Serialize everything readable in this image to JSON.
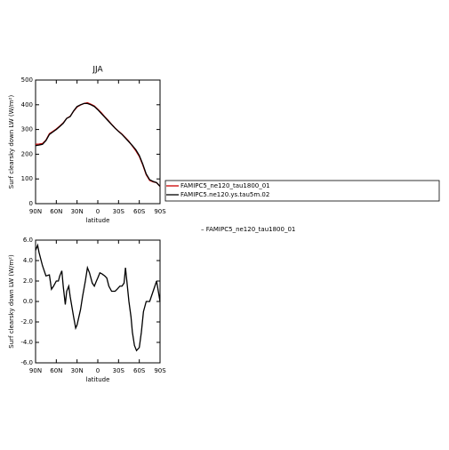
{
  "chart_data": [
    {
      "type": "line",
      "title": "JJA",
      "y_label": "Surf clearsky down LW (W/m²)",
      "x_label": "latitude",
      "xlim": [
        90,
        -90
      ],
      "ylim": [
        0,
        500
      ],
      "xticks": [
        {
          "value": 90,
          "label": "90N"
        },
        {
          "value": 60,
          "label": "60N"
        },
        {
          "value": 30,
          "label": "30N"
        },
        0,
        {
          "value": -30,
          "label": "30S"
        },
        {
          "value": -60,
          "label": "60S"
        },
        {
          "value": -90,
          "label": "90S"
        }
      ],
      "yticks": [
        0,
        100,
        200,
        300,
        400,
        500
      ],
      "x": [
        90,
        85,
        80,
        75,
        70,
        65,
        60,
        55,
        50,
        45,
        40,
        35,
        30,
        25,
        20,
        15,
        10,
        5,
        0,
        -5,
        -10,
        -15,
        -20,
        -25,
        -30,
        -35,
        -40,
        -45,
        -50,
        -55,
        -60,
        -65,
        -70,
        -75,
        -80,
        -85,
        -90
      ],
      "series": [
        {
          "name": "FAMIPC5_ne120_tau1800_01",
          "color": "#cc0000",
          "values": [
            240,
            241,
            243,
            257,
            283,
            292,
            302,
            314,
            327,
            345,
            353,
            374,
            391,
            399,
            405,
            408,
            402,
            395,
            382,
            368,
            352,
            337,
            321,
            306,
            293,
            281,
            267,
            252,
            233,
            214,
            191,
            157,
            117,
            94,
            88,
            85,
            70
          ]
        },
        {
          "name": "FAMIPC5.ne120.ys.tau5m.02",
          "color": "#000000",
          "values": [
            235,
            237,
            240,
            255,
            280,
            290,
            300,
            312,
            325,
            345,
            352,
            375,
            393,
            400,
            405,
            405,
            400,
            393,
            380,
            365,
            350,
            335,
            320,
            305,
            292,
            280,
            265,
            250,
            235,
            218,
            195,
            160,
            120,
            97,
            90,
            85,
            70
          ]
        }
      ]
    },
    {
      "type": "line",
      "y_label": "Surf clearsky down LW (W/m²)",
      "x_label": "latitude",
      "annotation": "– FAMIPC5_ne120_tau1800_01",
      "xlim": [
        90,
        -90
      ],
      "ylim": [
        -6,
        6
      ],
      "xticks": [
        {
          "value": 90,
          "label": "90N"
        },
        {
          "value": 60,
          "label": "60N"
        },
        {
          "value": 30,
          "label": "30N"
        },
        0,
        {
          "value": -30,
          "label": "30S"
        },
        {
          "value": -60,
          "label": "60S"
        },
        {
          "value": -90,
          "label": "90S"
        }
      ],
      "yticks": [
        {
          "value": -6,
          "label": "-6.0"
        },
        {
          "value": -4,
          "label": "-4.0"
        },
        {
          "value": -2,
          "label": "-2.0"
        },
        {
          "value": 0,
          "label": "0.0"
        },
        {
          "value": 2,
          "label": "2.0"
        },
        {
          "value": 4,
          "label": "4.0"
        },
        {
          "value": 6,
          "label": "6.0"
        }
      ],
      "x": [
        90,
        87,
        85,
        80,
        75,
        70,
        67,
        64,
        60,
        57,
        55,
        52,
        50,
        47,
        45,
        42,
        40,
        35,
        32,
        30,
        25,
        22,
        18,
        15,
        12,
        8,
        5,
        2,
        0,
        -3,
        -6,
        -10,
        -13,
        -16,
        -20,
        -25,
        -28,
        -32,
        -35,
        -38,
        -40,
        -42,
        -45,
        -48,
        -50,
        -53,
        -56,
        -60,
        -63,
        -66,
        -70,
        -75,
        -80,
        -85,
        -90
      ],
      "series": [
        {
          "color": "#000000",
          "values": [
            5.0,
            5.5,
            4.8,
            3.5,
            2.5,
            2.6,
            1.2,
            1.5,
            2.0,
            2.0,
            2.5,
            3.0,
            1.5,
            -0.3,
            1.0,
            1.5,
            0.5,
            -1.5,
            -2.6,
            -2.3,
            -0.8,
            0.5,
            2.0,
            3.3,
            2.8,
            1.8,
            1.5,
            2.0,
            2.3,
            2.8,
            2.7,
            2.5,
            2.3,
            1.5,
            1.0,
            1.0,
            1.2,
            1.5,
            1.5,
            1.8,
            3.3,
            2.0,
            0.0,
            -1.5,
            -3.0,
            -4.3,
            -4.8,
            -4.5,
            -3.0,
            -1.0,
            0.0,
            0.0,
            1.0,
            2.0,
            0.0
          ]
        }
      ]
    }
  ]
}
